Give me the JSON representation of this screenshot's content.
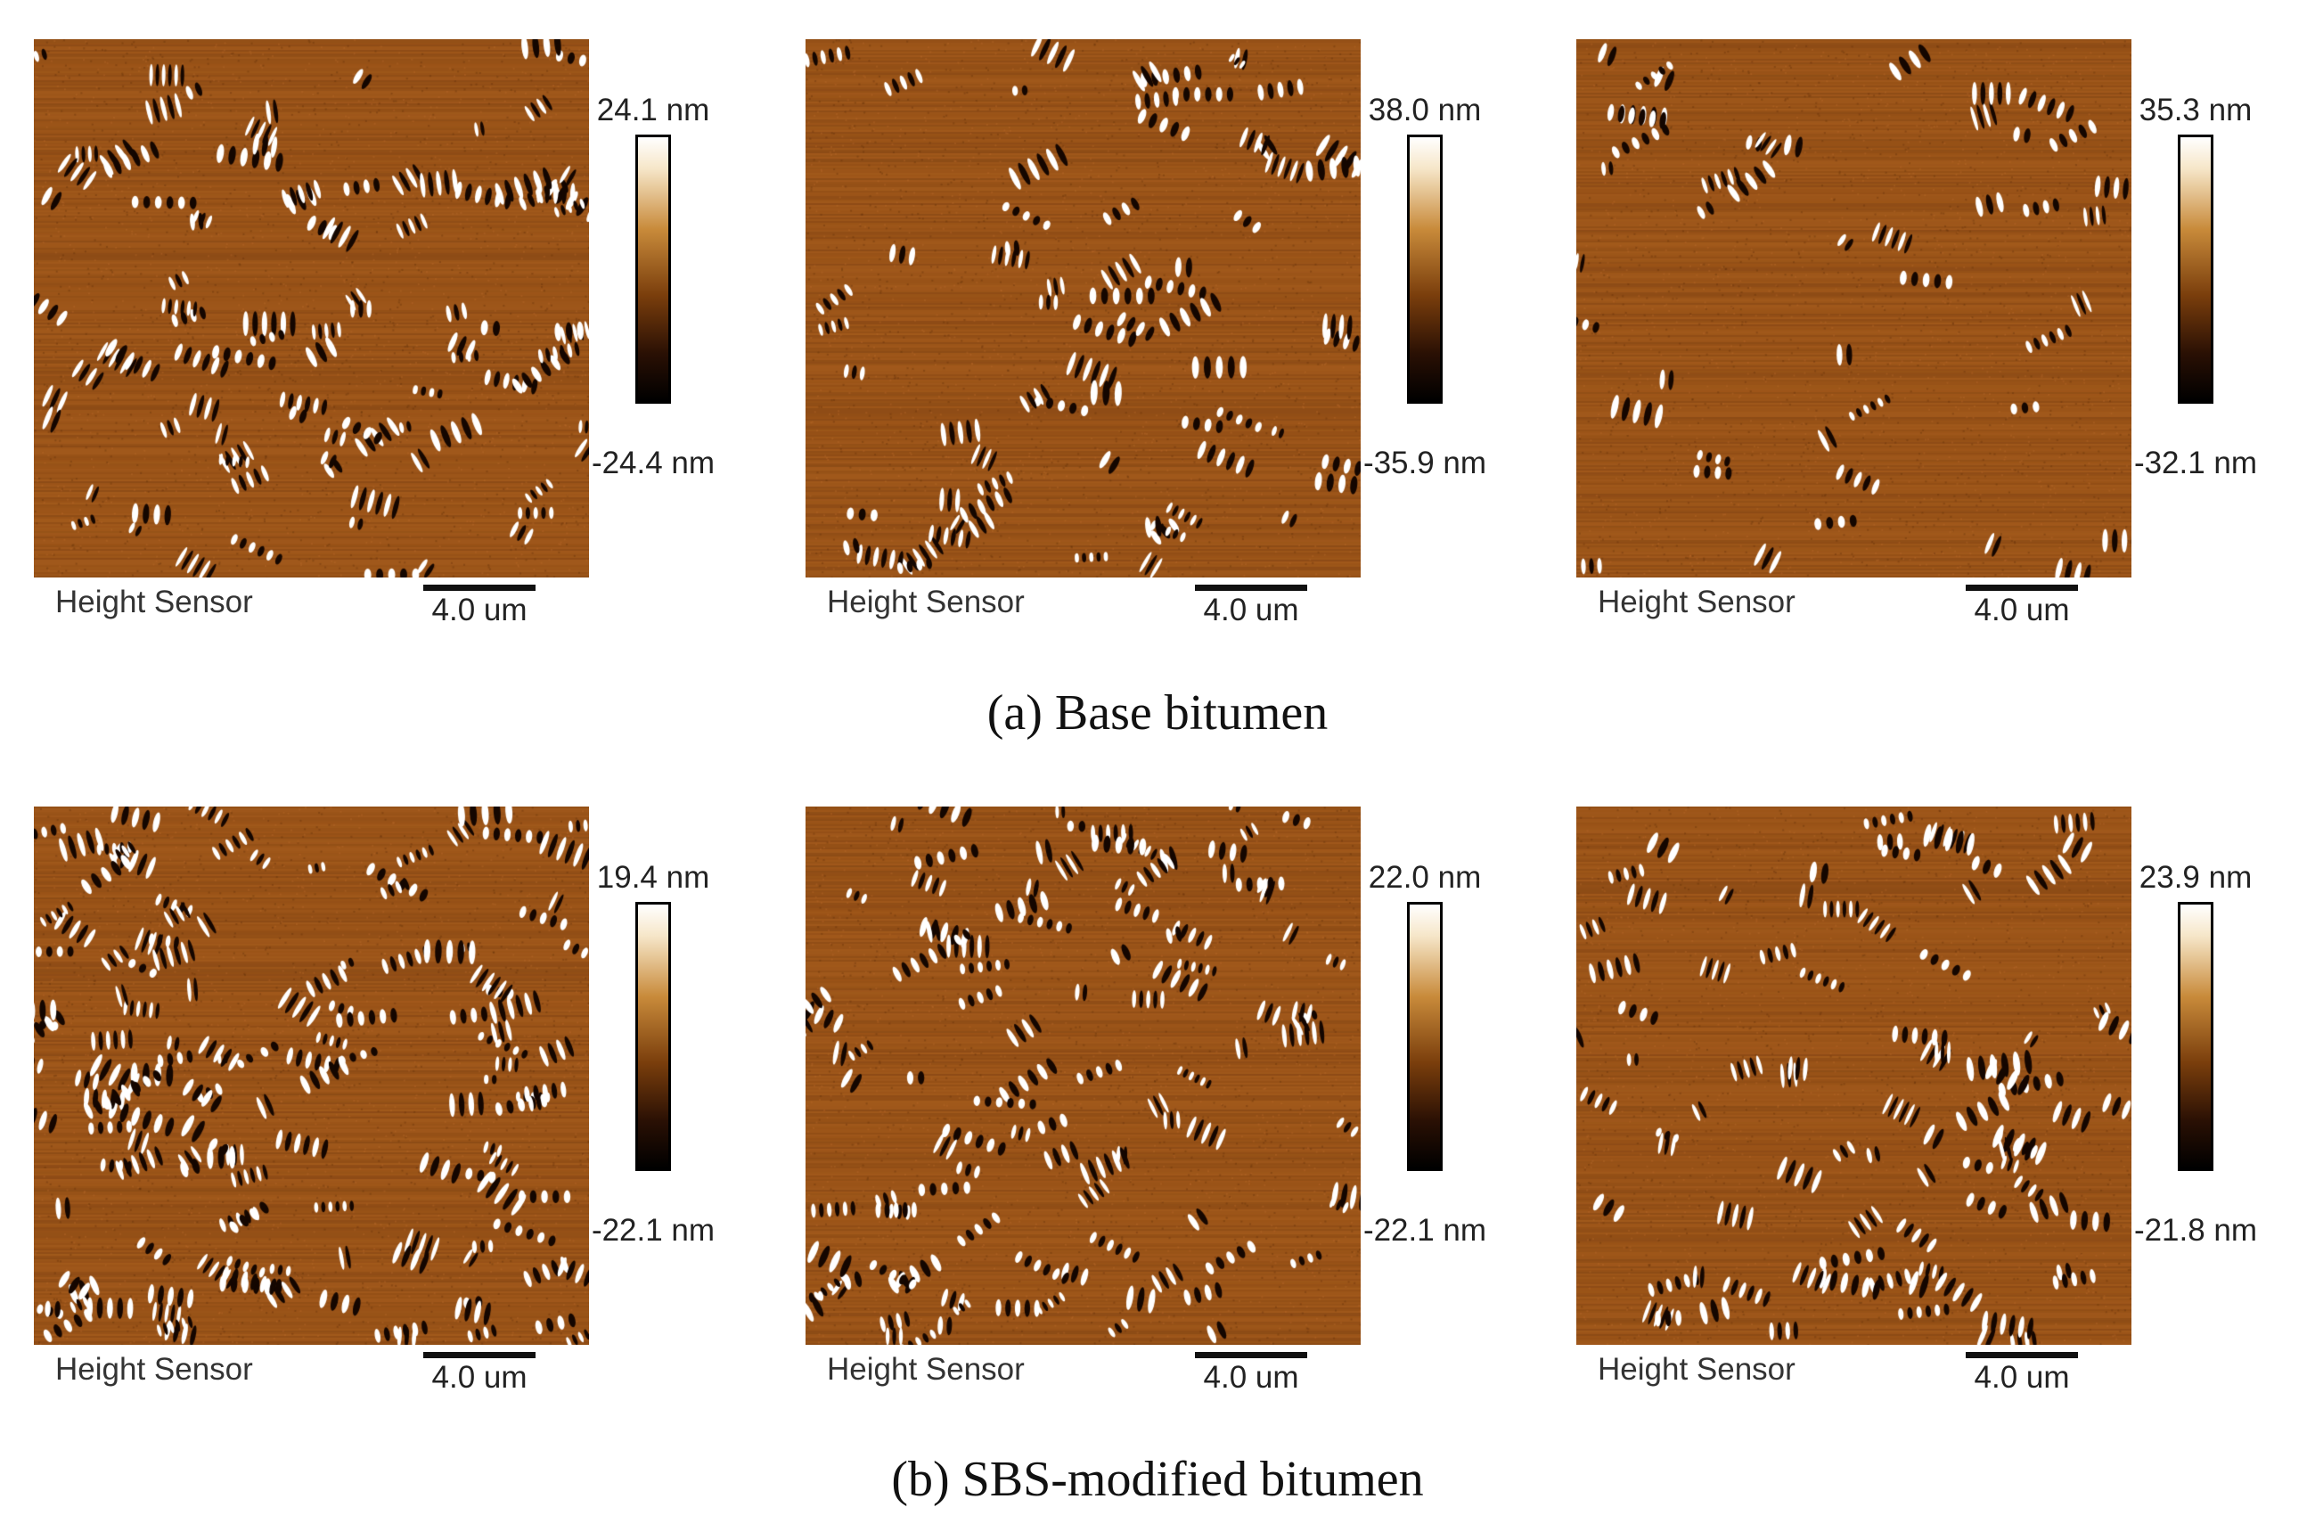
{
  "groups": [
    {
      "label": "(a) Base bitumen",
      "panels": [
        {
          "caption": "Height Sensor",
          "scalebar": "4.0 um",
          "max": "24.1 nm",
          "min": "-24.4 nm"
        },
        {
          "caption": "Height Sensor",
          "scalebar": "4.0 um",
          "max": "38.0 nm",
          "min": "-35.9 nm"
        },
        {
          "caption": "Height Sensor",
          "scalebar": "4.0 um",
          "max": "35.3 nm",
          "min": "-32.1 nm"
        }
      ]
    },
    {
      "label": "(b) SBS-modified bitumen",
      "panels": [
        {
          "caption": "Height Sensor",
          "scalebar": "4.0 um",
          "max": "19.4 nm",
          "min": "-22.1 nm"
        },
        {
          "caption": "Height Sensor",
          "scalebar": "4.0 um",
          "max": "22.0 nm",
          "min": "-22.1 nm"
        },
        {
          "caption": "Height Sensor",
          "scalebar": "4.0 um",
          "max": "23.9 nm",
          "min": "-21.8 nm"
        }
      ]
    }
  ],
  "colors": {
    "background": "#9b5418",
    "bright": "#ffffff",
    "dark": "#140600"
  }
}
